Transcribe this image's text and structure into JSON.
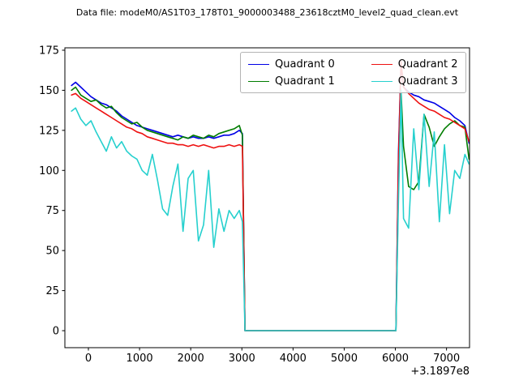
{
  "figure": {
    "title": "Data file: modeM0/AS1T03_178T01_9000003488_23618cztM0_level2_quad_clean.evt"
  },
  "chart_data": {
    "type": "line",
    "title": "Data file: modeM0/AS1T03_178T01_9000003488_23618cztM0_level2_quad_clean.evt",
    "xlabel": "",
    "ylabel": "",
    "x_offset_label": "+3.1897e8",
    "xticks": [
      0,
      1000,
      2000,
      3000,
      4000,
      5000,
      6000,
      7000
    ],
    "yticks": [
      0,
      25,
      50,
      75,
      100,
      125,
      150,
      175
    ],
    "xlim": [
      -460,
      7450
    ],
    "ylim": [
      -10.6,
      176.5
    ],
    "grid": false,
    "legend_position": "upper center, 2 columns",
    "x": [
      -330,
      -250,
      -150,
      -50,
      50,
      150,
      250,
      350,
      450,
      550,
      650,
      750,
      850,
      950,
      1050,
      1150,
      1250,
      1350,
      1450,
      1550,
      1650,
      1750,
      1850,
      1950,
      2050,
      2150,
      2250,
      2350,
      2450,
      2550,
      2650,
      2750,
      2850,
      2950,
      3010,
      3060,
      5960,
      6010,
      6060,
      6110,
      6160,
      6260,
      6360,
      6460,
      6560,
      6660,
      6760,
      6860,
      6960,
      7060,
      7160,
      7260,
      7360,
      7440
    ],
    "series": [
      {
        "name": "Quadrant 0",
        "color": "#0000e6",
        "values": [
          153,
          155,
          152,
          149,
          146,
          144,
          142,
          141,
          139,
          137,
          134,
          132,
          130,
          128,
          127,
          126,
          125,
          124,
          123,
          122,
          121,
          122,
          121,
          120,
          121,
          120,
          120,
          121,
          120,
          121,
          122,
          122,
          123,
          125,
          123,
          0,
          0,
          0,
          110,
          167,
          152,
          149,
          147,
          146,
          144,
          143,
          142,
          140,
          138,
          136,
          133,
          131,
          128,
          117
        ]
      },
      {
        "name": "Quadrant 1",
        "color": "#007d00",
        "values": [
          150,
          152,
          147,
          145,
          143,
          144,
          141,
          139,
          140,
          136,
          133,
          131,
          129,
          130,
          127,
          125,
          124,
          123,
          122,
          121,
          120,
          119,
          121,
          120,
          122,
          121,
          120,
          122,
          121,
          123,
          124,
          125,
          126,
          128,
          122,
          0,
          0,
          0,
          90,
          150,
          115,
          90,
          88,
          93,
          135,
          127,
          115,
          121,
          126,
          129,
          131,
          128,
          127,
          107
        ]
      },
      {
        "name": "Quadrant 2",
        "color": "#ee1111",
        "values": [
          147,
          148,
          145,
          143,
          141,
          139,
          137,
          135,
          133,
          131,
          129,
          127,
          126,
          124,
          123,
          121,
          120,
          119,
          118,
          117,
          117,
          116,
          116,
          115,
          116,
          115,
          116,
          115,
          114,
          115,
          115,
          116,
          115,
          116,
          115,
          0,
          0,
          0,
          105,
          168,
          152,
          148,
          145,
          142,
          140,
          138,
          137,
          135,
          133,
          132,
          130,
          128,
          126,
          118
        ]
      },
      {
        "name": "Quadrant 3",
        "color": "#26d0ce",
        "values": [
          137,
          139,
          132,
          128,
          131,
          124,
          118,
          112,
          121,
          114,
          118,
          112,
          109,
          107,
          100,
          97,
          110,
          94,
          76,
          72,
          90,
          104,
          62,
          95,
          100,
          56,
          66,
          100,
          52,
          76,
          62,
          75,
          70,
          75,
          68,
          0,
          0,
          0,
          80,
          150,
          70,
          64,
          126,
          88,
          135,
          90,
          124,
          68,
          116,
          73,
          100,
          95,
          110,
          104
        ]
      }
    ]
  }
}
